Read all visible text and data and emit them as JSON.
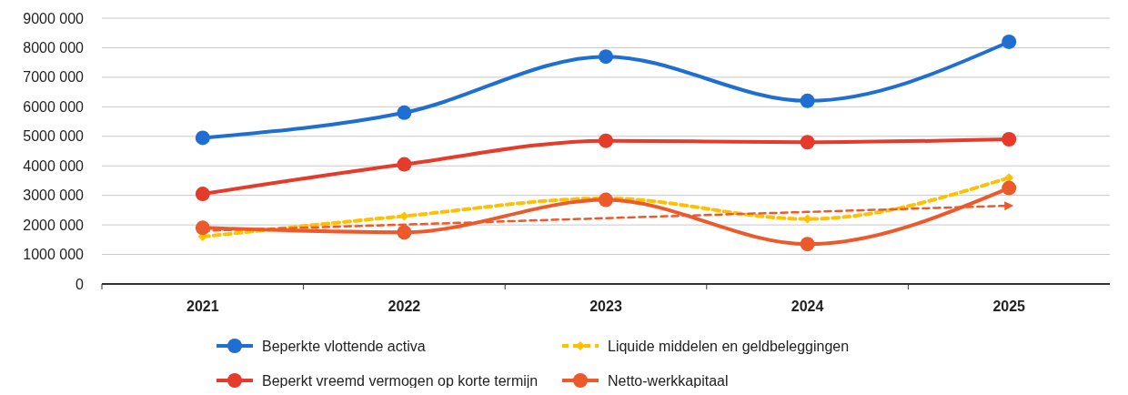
{
  "chart_data": {
    "type": "line",
    "categories": [
      "2021",
      "2022",
      "2023",
      "2024",
      "2025"
    ],
    "ylim": [
      0,
      9000000
    ],
    "yticks": [
      0,
      {
        "value": 1000000,
        "label": "1000 000"
      },
      {
        "value": 2000000,
        "label": "2000 000"
      },
      {
        "value": 3000000,
        "label": "3000 000"
      },
      {
        "value": 4000000,
        "label": "4000 000"
      },
      {
        "value": 5000000,
        "label": "5000 000"
      },
      {
        "value": 6000000,
        "label": "6000 000"
      },
      {
        "value": 7000000,
        "label": "7000 000"
      },
      {
        "value": 8000000,
        "label": "8000 000"
      },
      {
        "value": 9000000,
        "label": "9000 000"
      }
    ],
    "grid": "y",
    "legend": "bottom",
    "series": [
      {
        "name": "Beperkte vlottende activa",
        "color": "#1f6fd3",
        "values": [
          4950000,
          5800000,
          7700000,
          6200000,
          8200000
        ],
        "marker": "circle",
        "line_style": "solid"
      },
      {
        "name": "Liquide middelen en geldbeleggingen",
        "color": "#ffc000",
        "values": [
          1600000,
          2300000,
          2900000,
          2200000,
          3600000
        ],
        "marker": "diamond",
        "line_style": "dashed"
      },
      {
        "name": "Beperkt vreemd vermogen op korte termijn",
        "color": "#e63b2a",
        "values": [
          3050000,
          4050000,
          4850000,
          4800000,
          4900000
        ],
        "marker": "circle",
        "line_style": "solid"
      },
      {
        "name": "Netto-werkkapitaal",
        "color": "#ec5a2c",
        "values": [
          1900000,
          1750000,
          2850000,
          1350000,
          3250000
        ],
        "marker": "circle",
        "line_style": "solid"
      },
      {
        "type": "line",
        "color": "#ec5a2c",
        "values": [
          1800000,
          2010000,
          2230000,
          2440000,
          2650000
        ],
        "marker": "none",
        "line_style": "dashed"
      }
    ]
  }
}
